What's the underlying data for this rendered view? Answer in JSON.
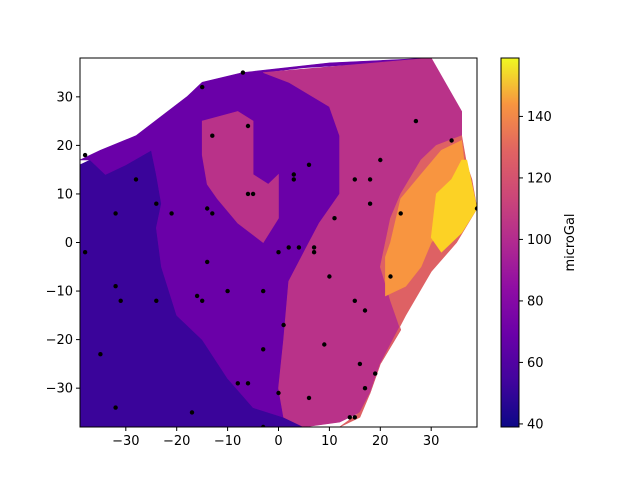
{
  "chart_data": {
    "type": "heatmap",
    "subtype": "filled-contour with scatter points",
    "title": "",
    "xlabel": "",
    "ylabel": "",
    "xlim": [
      -39,
      39
    ],
    "ylim": [
      -38,
      38
    ],
    "xticks": [
      -30,
      -20,
      -10,
      0,
      10,
      20,
      30
    ],
    "yticks": [
      -30,
      -20,
      -10,
      0,
      10,
      20,
      30
    ],
    "grid": false,
    "colormap": "plasma",
    "colorbar": {
      "label": "microGal",
      "range": [
        39,
        159
      ],
      "ticks": [
        40,
        60,
        80,
        100,
        120,
        140
      ]
    },
    "contour_regions": [
      {
        "level": 45,
        "color": "#3a049a",
        "polygon": [
          [
            -39,
            16
          ],
          [
            -37,
            17
          ],
          [
            -34,
            14
          ],
          [
            -30,
            16
          ],
          [
            -25,
            19
          ],
          [
            -24,
            14
          ],
          [
            -23,
            8
          ],
          [
            -24,
            3
          ],
          [
            -23,
            -5
          ],
          [
            -20,
            -15
          ],
          [
            -15,
            -20
          ],
          [
            -10,
            -28
          ],
          [
            -5,
            -34
          ],
          [
            1,
            -36
          ],
          [
            5,
            -38
          ],
          [
            -39,
            -38
          ]
        ]
      },
      {
        "level": 65,
        "color": "#6a00a8",
        "polygon": [
          [
            -39,
            17
          ],
          [
            -35,
            19
          ],
          [
            -28,
            22
          ],
          [
            -18,
            30
          ],
          [
            -15,
            33
          ],
          [
            -7,
            35
          ],
          [
            10,
            37
          ],
          [
            30,
            38
          ],
          [
            20,
            37
          ],
          [
            5,
            36
          ],
          [
            -3,
            35
          ],
          [
            2,
            33
          ],
          [
            10,
            28
          ],
          [
            12,
            22
          ],
          [
            12,
            10
          ],
          [
            8,
            4
          ],
          [
            5,
            -2
          ],
          [
            2,
            -8
          ],
          [
            1,
            -20
          ],
          [
            0,
            -30
          ],
          [
            1,
            -36
          ],
          [
            -5,
            -34
          ],
          [
            -10,
            -28
          ],
          [
            -15,
            -20
          ],
          [
            -20,
            -15
          ],
          [
            -23,
            -5
          ],
          [
            -24,
            3
          ],
          [
            -23,
            8
          ],
          [
            -24,
            14
          ],
          [
            -25,
            19
          ],
          [
            -30,
            16
          ],
          [
            -34,
            14
          ],
          [
            -37,
            17
          ]
        ]
      },
      {
        "level": 85,
        "color": "#b93289",
        "polygon": [
          [
            -3,
            35
          ],
          [
            30,
            38
          ],
          [
            36,
            27
          ],
          [
            36,
            22
          ],
          [
            31,
            20
          ],
          [
            28,
            17
          ],
          [
            24,
            10
          ],
          [
            22,
            5
          ],
          [
            20,
            -5
          ],
          [
            22,
            -12
          ],
          [
            24,
            -18
          ],
          [
            20,
            -25
          ],
          [
            18,
            -31
          ],
          [
            16,
            -35
          ],
          [
            12,
            -37
          ],
          [
            5,
            -38
          ],
          [
            1,
            -36
          ],
          [
            0,
            -30
          ],
          [
            1,
            -20
          ],
          [
            2,
            -8
          ],
          [
            5,
            -2
          ],
          [
            8,
            4
          ],
          [
            12,
            10
          ],
          [
            12,
            22
          ],
          [
            10,
            28
          ],
          [
            2,
            33
          ]
        ]
      },
      {
        "level": 85,
        "color": "#b93289",
        "polygon": [
          [
            -15,
            25
          ],
          [
            -8,
            27
          ],
          [
            -5,
            25
          ],
          [
            -5,
            14
          ],
          [
            -2,
            12
          ],
          [
            0,
            14
          ],
          [
            0,
            5
          ],
          [
            -3,
            0
          ],
          [
            -8,
            4
          ],
          [
            -12,
            9
          ],
          [
            -14,
            12
          ],
          [
            -15,
            18
          ]
        ]
      },
      {
        "level": 105,
        "color": "#de6164",
        "polygon": [
          [
            36,
            22
          ],
          [
            37,
            16
          ],
          [
            38,
            13
          ],
          [
            39,
            7
          ],
          [
            35,
            0
          ],
          [
            30,
            -6
          ],
          [
            25,
            -15
          ],
          [
            20,
            -25
          ],
          [
            18,
            -31
          ],
          [
            16,
            -35
          ],
          [
            12,
            -38
          ],
          [
            16,
            -36
          ],
          [
            18,
            -31
          ],
          [
            20,
            -25
          ],
          [
            24,
            -18
          ],
          [
            22,
            -12
          ],
          [
            20,
            -5
          ],
          [
            22,
            5
          ],
          [
            24,
            10
          ],
          [
            28,
            17
          ],
          [
            31,
            20
          ]
        ]
      },
      {
        "level": 125,
        "color": "#f89540",
        "polygon": [
          [
            32,
            19
          ],
          [
            36,
            21
          ],
          [
            37,
            12
          ],
          [
            34,
            5
          ],
          [
            30,
            0
          ],
          [
            28,
            -5
          ],
          [
            25,
            -9
          ],
          [
            21,
            -11
          ],
          [
            21,
            -3
          ],
          [
            22,
            0
          ],
          [
            24,
            9
          ],
          [
            28,
            14
          ]
        ]
      },
      {
        "level": 145,
        "color": "#fcd225",
        "polygon": [
          [
            37,
            17
          ],
          [
            39,
            7
          ],
          [
            36,
            2
          ],
          [
            32,
            -2
          ],
          [
            30,
            1
          ],
          [
            31,
            10
          ],
          [
            34,
            13
          ],
          [
            36,
            17
          ]
        ]
      }
    ],
    "points": [
      [
        -38,
        18
      ],
      [
        -38,
        -2
      ],
      [
        -35,
        -23
      ],
      [
        -32,
        -34
      ],
      [
        -32,
        6
      ],
      [
        -32,
        -9
      ],
      [
        -31,
        -12
      ],
      [
        -28,
        13
      ],
      [
        -24,
        8
      ],
      [
        -24,
        -12
      ],
      [
        -21,
        6
      ],
      [
        -17,
        -35
      ],
      [
        -16,
        -11
      ],
      [
        -15,
        -12
      ],
      [
        -15,
        32
      ],
      [
        -14,
        -4
      ],
      [
        -14,
        7
      ],
      [
        -13,
        6
      ],
      [
        -13,
        22
      ],
      [
        -10,
        -10
      ],
      [
        -8,
        -29
      ],
      [
        -7,
        35
      ],
      [
        -6,
        -29
      ],
      [
        -6,
        24
      ],
      [
        -6,
        10
      ],
      [
        -5,
        10
      ],
      [
        -3,
        -38
      ],
      [
        -3,
        -22
      ],
      [
        -3,
        -10
      ],
      [
        0,
        -2
      ],
      [
        0,
        -31
      ],
      [
        1,
        -17
      ],
      [
        2,
        -1
      ],
      [
        3,
        14
      ],
      [
        3,
        13
      ],
      [
        4,
        -1
      ],
      [
        6,
        -32
      ],
      [
        6,
        16
      ],
      [
        7,
        -2
      ],
      [
        7,
        -1
      ],
      [
        9,
        -21
      ],
      [
        10,
        -7
      ],
      [
        11,
        5
      ],
      [
        14,
        -36
      ],
      [
        15,
        -36
      ],
      [
        15,
        -12
      ],
      [
        15,
        13
      ],
      [
        16,
        -25
      ],
      [
        17,
        -30
      ],
      [
        17,
        -14
      ],
      [
        18,
        13
      ],
      [
        18,
        8
      ],
      [
        19,
        -27
      ],
      [
        20,
        17
      ],
      [
        22,
        -7
      ],
      [
        24,
        6
      ],
      [
        27,
        25
      ],
      [
        34,
        21
      ],
      [
        39,
        7
      ]
    ]
  }
}
